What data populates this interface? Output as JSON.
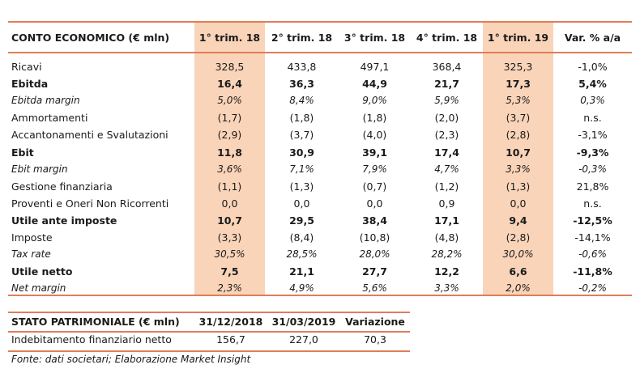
{
  "conto_economico": {
    "header": [
      "CONTO ECONOMICO (€ mln)",
      "1° trim. 18",
      "2° trim. 18",
      "3° trim. 18",
      "4° trim. 18",
      "1° trim. 19",
      "Var. % a/a"
    ],
    "rows": [
      {
        "label": "Ricavi",
        "values": [
          "328,5",
          "433,8",
          "497,1",
          "368,4",
          "325,3",
          "-1,0%"
        ],
        "style": "normal"
      },
      {
        "label": "Ebitda",
        "values": [
          "16,4",
          "36,3",
          "44,9",
          "21,7",
          "17,3",
          "5,4%"
        ],
        "style": "bold"
      },
      {
        "label": "Ebitda margin",
        "values": [
          "5,0%",
          "8,4%",
          "9,0%",
          "5,9%",
          "5,3%",
          "0,3%"
        ],
        "style": "italic"
      },
      {
        "label": "Ammortamenti",
        "values": [
          "(1,7)",
          "(1,8)",
          "(1,8)",
          "(2,0)",
          "(3,7)",
          "n.s."
        ],
        "style": "normal"
      },
      {
        "label": "Accantonamenti e Svalutazioni",
        "values": [
          "(2,9)",
          "(3,7)",
          "(4,0)",
          "(2,3)",
          "(2,8)",
          "-3,1%"
        ],
        "style": "normal"
      },
      {
        "label": "Ebit",
        "values": [
          "11,8",
          "30,9",
          "39,1",
          "17,4",
          "10,7",
          "-9,3%"
        ],
        "style": "bold"
      },
      {
        "label": "Ebit margin",
        "values": [
          "3,6%",
          "7,1%",
          "7,9%",
          "4,7%",
          "3,3%",
          "-0,3%"
        ],
        "style": "italic"
      },
      {
        "label": "Gestione finanziaria",
        "values": [
          "(1,1)",
          "(1,3)",
          "(0,7)",
          "(1,2)",
          "(1,3)",
          "21,8%"
        ],
        "style": "normal"
      },
      {
        "label": "Proventi e Oneri Non Ricorrenti",
        "values": [
          "0,0",
          "0,0",
          "0,0",
          "0,9",
          "0,0",
          "n.s."
        ],
        "style": "normal"
      },
      {
        "label": "Utile ante imposte",
        "values": [
          "10,7",
          "29,5",
          "38,4",
          "17,1",
          "9,4",
          "-12,5%"
        ],
        "style": "bold"
      },
      {
        "label": "Imposte",
        "values": [
          "(3,3)",
          "(8,4)",
          "(10,8)",
          "(4,8)",
          "(2,8)",
          "-14,1%"
        ],
        "style": "normal"
      },
      {
        "label": "Tax rate",
        "values": [
          "30,5%",
          "28,5%",
          "28,0%",
          "28,2%",
          "30,0%",
          "-0,6%"
        ],
        "style": "italic"
      },
      {
        "label": "Utile netto",
        "values": [
          "7,5",
          "21,1",
          "27,7",
          "12,2",
          "6,6",
          "-11,8%"
        ],
        "style": "bold"
      },
      {
        "label": "Net margin",
        "values": [
          "2,3%",
          "4,9%",
          "5,6%",
          "3,3%",
          "2,0%",
          "-0,2%"
        ],
        "style": "italic"
      }
    ]
  },
  "stato_patrimoniale": {
    "header": [
      "STATO PATRIMONIALE (€ mln)",
      "31/12/2018",
      "31/03/2019",
      "Variazione"
    ],
    "rows": [
      {
        "label": "Indebitamento finanziario netto",
        "values": [
          "156,7",
          "227,0",
          "70,3"
        ]
      }
    ]
  },
  "source": "Fonte: dati societari; Elaborazione Market Insight",
  "colors": {
    "accent_rule": "#e07d5a",
    "highlight": "#f9d4b9"
  }
}
